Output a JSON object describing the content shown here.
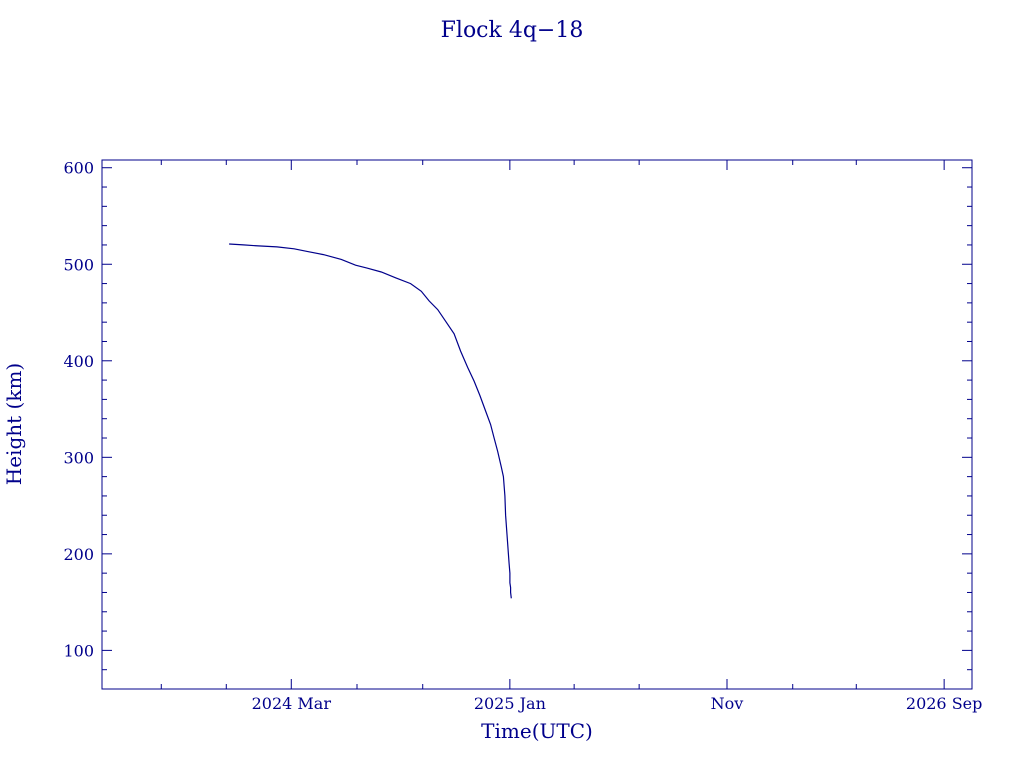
{
  "chart_data": {
    "type": "line",
    "title": "Flock 4q−18",
    "xlabel": "Time(UTC)",
    "ylabel": "Height (km)",
    "x_type": "date",
    "xlim": [
      "2023-06-10",
      "2026-10-10"
    ],
    "ylim": [
      60,
      608
    ],
    "grid": false,
    "x_ticks": [
      {
        "date": "2024-03-01",
        "label": "2024 Mar"
      },
      {
        "date": "2025-01-01",
        "label": "2025 Jan"
      },
      {
        "date": "2025-11-01",
        "label": "Nov"
      },
      {
        "date": "2026-09-01",
        "label": "2026 Sep"
      }
    ],
    "x_minor_ticks": [
      "2023-09-01",
      "2023-12-01",
      "2024-06-01",
      "2024-09-01",
      "2025-04-01",
      "2025-07-01",
      "2026-02-01",
      "2026-05-01"
    ],
    "y_ticks": [
      100,
      200,
      300,
      400,
      500,
      600
    ],
    "y_minor_step": 20,
    "series": [
      {
        "color": "#00008b",
        "x": [
          "2023-12-05",
          "2023-12-25",
          "2024-01-15",
          "2024-02-10",
          "2024-03-05",
          "2024-03-25",
          "2024-04-15",
          "2024-05-10",
          "2024-05-30",
          "2024-06-15",
          "2024-07-05",
          "2024-07-25",
          "2024-08-15",
          "2024-08-30",
          "2024-09-10",
          "2024-09-22",
          "2024-10-02",
          "2024-10-15",
          "2024-10-24",
          "2024-11-03",
          "2024-11-12",
          "2024-11-20",
          "2024-11-28",
          "2024-12-05",
          "2024-12-10",
          "2024-12-15",
          "2024-12-20",
          "2024-12-23",
          "2024-12-25",
          "2024-12-26",
          "2024-12-28",
          "2024-12-29",
          "2024-12-30",
          "2024-12-31",
          "2025-01-01",
          "2025-01-01",
          "2025-01-02",
          "2025-01-02",
          "2025-01-03"
        ],
        "y": [
          521,
          520,
          519,
          518,
          516,
          513,
          510,
          505,
          499,
          496,
          492,
          486,
          480,
          472,
          462,
          453,
          442,
          428,
          410,
          393,
          379,
          364,
          348,
          334,
          320,
          306,
          290,
          280,
          260,
          240,
          220,
          210,
          200,
          190,
          180,
          170,
          165,
          160,
          154
        ]
      }
    ]
  }
}
